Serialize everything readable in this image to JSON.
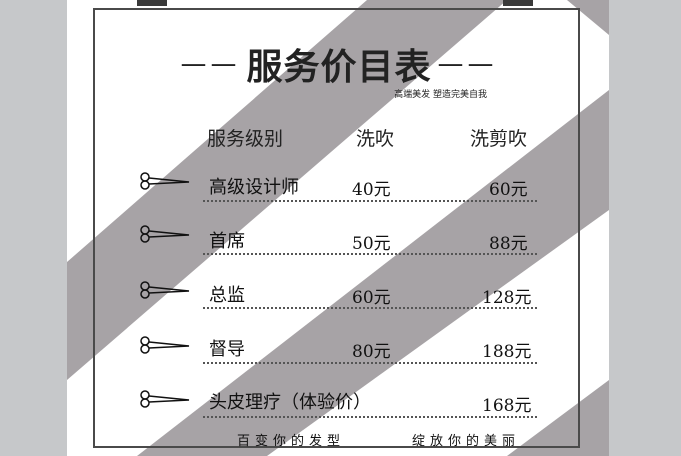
{
  "menu": {
    "title": "服务价目表",
    "title_dash": "——",
    "subtitle": "高端美发 塑造完美自我",
    "headers": {
      "level": "服务级别",
      "wash_blow": "洗吹",
      "wash_cut_blow": "洗剪吹"
    },
    "rows": [
      {
        "name": "高级设计师",
        "wash_blow": "40元",
        "wash_cut_blow": "60元"
      },
      {
        "name": "首席",
        "wash_blow": "50元",
        "wash_cut_blow": "88元"
      },
      {
        "name": "总监",
        "wash_blow": "60元",
        "wash_cut_blow": "128元"
      },
      {
        "name": "督导",
        "wash_blow": "80元",
        "wash_cut_blow": "188元"
      },
      {
        "name": "头皮理疗（体验价）",
        "wash_blow": "",
        "wash_cut_blow": "168元"
      }
    ],
    "footer_left": "百变你的发型",
    "footer_right": "绽放你的美丽"
  },
  "colors": {
    "stripe": "#a7a3a6",
    "background": "#ffffff",
    "outer": "#c6c8ca"
  },
  "icons": {
    "row_icon": "scissors-icon"
  }
}
